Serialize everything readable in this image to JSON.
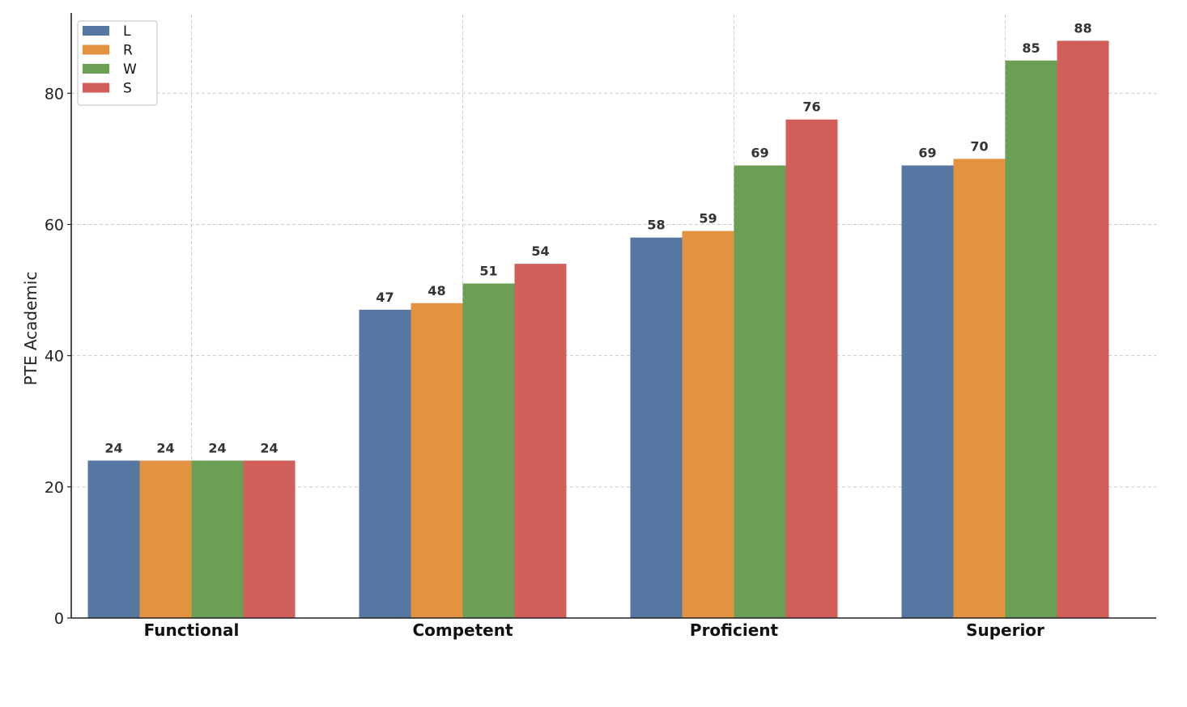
{
  "chart_data": {
    "type": "bar",
    "categories": [
      "Functional",
      "Competent",
      "Proficient",
      "Superior"
    ],
    "series": [
      {
        "name": "L",
        "values": [
          24,
          47,
          58,
          69
        ],
        "color": "#5577a1"
      },
      {
        "name": "R",
        "values": [
          24,
          48,
          59,
          70
        ],
        "color": "#e39340"
      },
      {
        "name": "W",
        "values": [
          24,
          51,
          69,
          85
        ],
        "color": "#6a9f55"
      },
      {
        "name": "S",
        "values": [
          24,
          54,
          76,
          88
        ],
        "color": "#d15e58"
      }
    ],
    "title": "",
    "xlabel": "",
    "ylabel": "PTE Academic",
    "ylim": [
      0,
      92
    ],
    "yticks": [
      0,
      20,
      40,
      60,
      80
    ],
    "grid": true,
    "legend_position": "top-left",
    "data_labels": true
  }
}
